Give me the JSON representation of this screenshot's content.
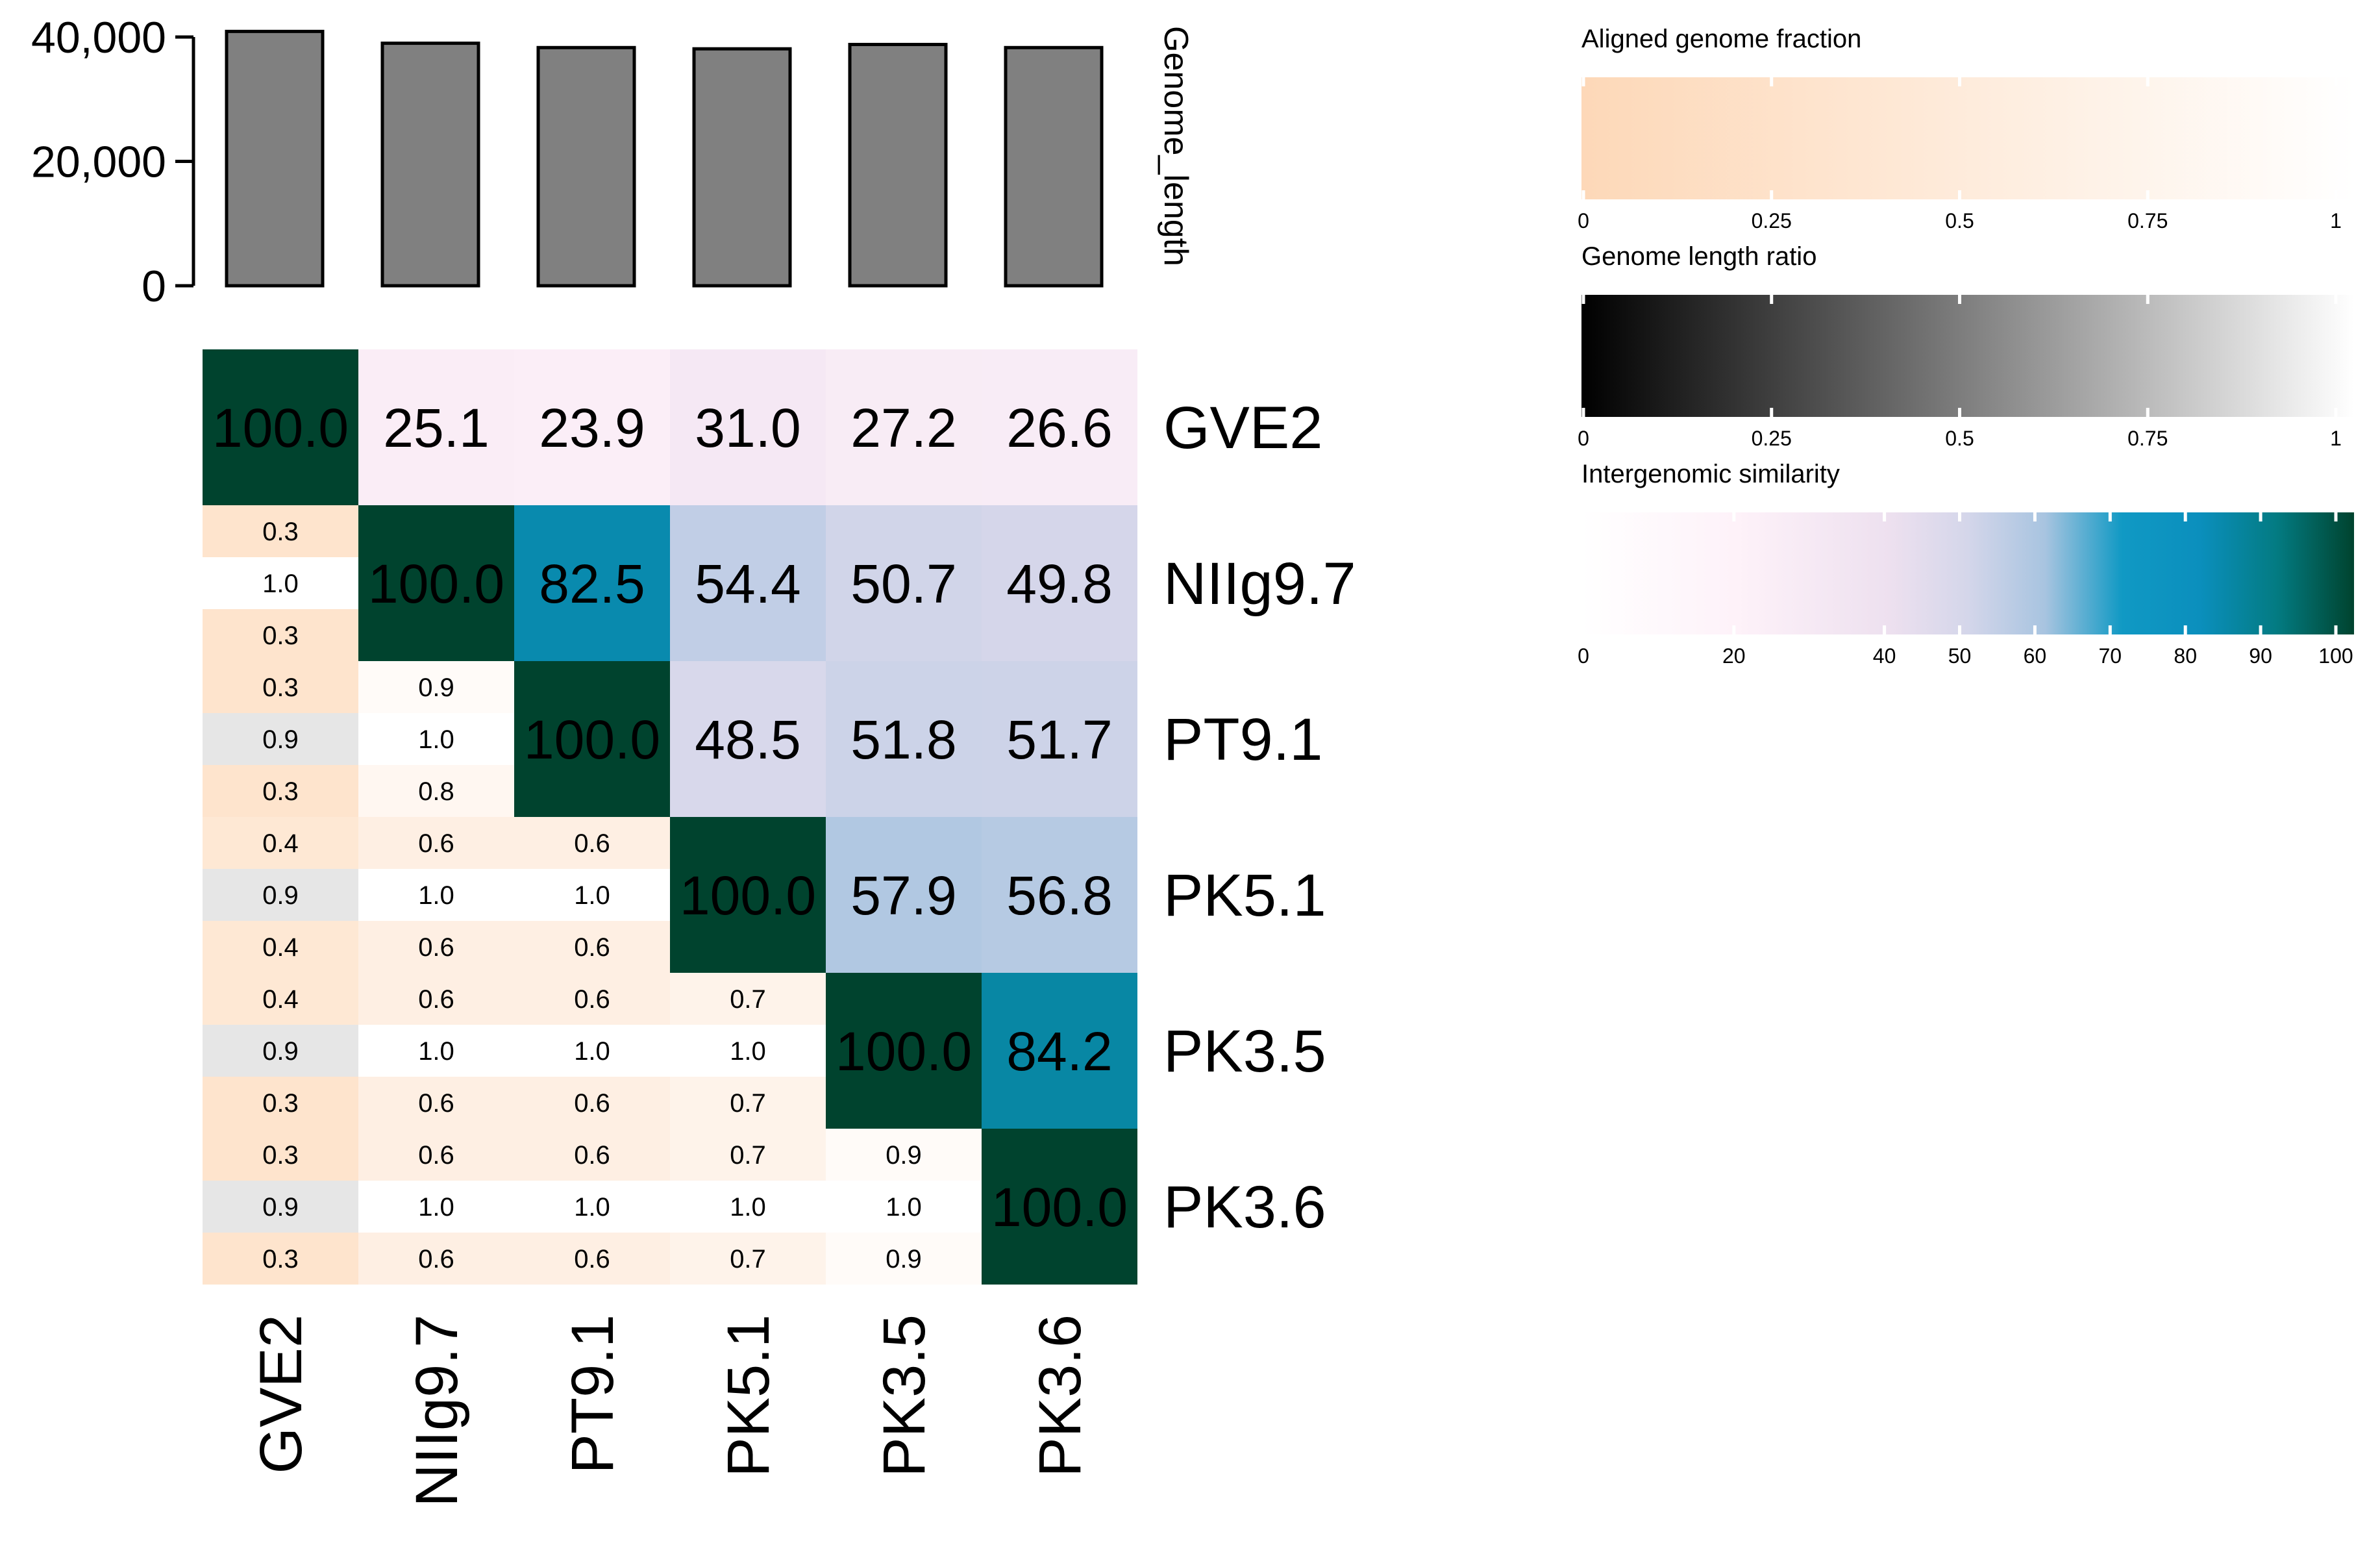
{
  "chart_data": [
    {
      "type": "bar",
      "ylabel": "Genome_length",
      "ylim": [
        0,
        40000
      ],
      "yticks": [
        "0",
        "20,000",
        "40,000"
      ],
      "categories": [
        "GVE2",
        "NIIg9.7",
        "PT9.1",
        "PK5.1",
        "PK3.5",
        "PK3.6"
      ],
      "values": [
        40900,
        39000,
        38300,
        38100,
        38800,
        38300
      ],
      "bar_color": "#808080"
    },
    {
      "type": "heatmap",
      "genomes": [
        "GVE2",
        "NIIg9.7",
        "PT9.1",
        "PK5.1",
        "PK3.5",
        "PK3.6"
      ],
      "similarity": [
        [
          "100.0",
          "25.1",
          "23.9",
          "31.0",
          "27.2",
          "26.6"
        ],
        [
          "",
          "100.0",
          "82.5",
          "54.4",
          "50.7",
          "49.8"
        ],
        [
          "",
          "",
          "100.0",
          "48.5",
          "51.8",
          "51.7"
        ],
        [
          "",
          "",
          "",
          "100.0",
          "57.9",
          "56.8"
        ],
        [
          "",
          "",
          "",
          "",
          "100.0",
          "84.2"
        ],
        [
          "",
          "",
          "",
          "",
          "",
          "100.0"
        ]
      ],
      "lower_triangle": [
        {
          "row": 1,
          "col": 0,
          "values": [
            "0.3",
            "1.0",
            "0.3"
          ]
        },
        {
          "row": 2,
          "col": 0,
          "values": [
            "0.3",
            "0.9",
            "0.3"
          ]
        },
        {
          "row": 2,
          "col": 1,
          "values": [
            "0.9",
            "1.0",
            "0.8"
          ]
        },
        {
          "row": 3,
          "col": 0,
          "values": [
            "0.4",
            "0.9",
            "0.4"
          ]
        },
        {
          "row": 3,
          "col": 1,
          "values": [
            "0.6",
            "1.0",
            "0.6"
          ]
        },
        {
          "row": 3,
          "col": 2,
          "values": [
            "0.6",
            "1.0",
            "0.6"
          ]
        },
        {
          "row": 4,
          "col": 0,
          "values": [
            "0.4",
            "0.9",
            "0.3"
          ]
        },
        {
          "row": 4,
          "col": 1,
          "values": [
            "0.6",
            "1.0",
            "0.6"
          ]
        },
        {
          "row": 4,
          "col": 2,
          "values": [
            "0.6",
            "1.0",
            "0.6"
          ]
        },
        {
          "row": 4,
          "col": 3,
          "values": [
            "0.7",
            "1.0",
            "0.7"
          ]
        },
        {
          "row": 5,
          "col": 0,
          "values": [
            "0.3",
            "0.9",
            "0.3"
          ]
        },
        {
          "row": 5,
          "col": 1,
          "values": [
            "0.6",
            "1.0",
            "0.6"
          ]
        },
        {
          "row": 5,
          "col": 2,
          "values": [
            "0.6",
            "1.0",
            "0.6"
          ]
        },
        {
          "row": 5,
          "col": 3,
          "values": [
            "0.7",
            "1.0",
            "0.7"
          ]
        },
        {
          "row": 5,
          "col": 4,
          "values": [
            "0.9",
            "1.0",
            "0.9"
          ]
        }
      ]
    },
    {
      "type": "legend",
      "title": "Aligned genome fraction",
      "colors": [
        "#fdd8b8",
        "#ffffff"
      ],
      "domain": [
        0,
        1
      ],
      "ticks": [
        "0",
        "0.25",
        "0.5",
        "0.75",
        "1"
      ],
      "tick_values": [
        0,
        0.25,
        0.5,
        0.75,
        1
      ]
    },
    {
      "type": "legend",
      "title": "Genome length ratio",
      "colors": [
        "#000000",
        "#ffffff"
      ],
      "domain": [
        0,
        1
      ],
      "ticks": [
        "0",
        "0.25",
        "0.5",
        "0.75",
        "1"
      ],
      "tick_values": [
        0,
        0.25,
        0.5,
        0.75,
        1
      ]
    },
    {
      "type": "legend",
      "title": "Intergenomic similarity",
      "domain": [
        0,
        100
      ],
      "ticks": [
        "0",
        "20",
        "40",
        "50",
        "60",
        "70",
        "80",
        "90",
        "100"
      ],
      "tick_values": [
        0,
        20,
        40,
        50,
        60,
        70,
        80,
        90,
        100
      ],
      "color_stops": [
        [
          0,
          "#ffffff"
        ],
        [
          20,
          "#fef2f9"
        ],
        [
          40,
          "#ede0ef"
        ],
        [
          50,
          "#d4d6ea"
        ],
        [
          60,
          "#a8c4e0"
        ],
        [
          70,
          "#1099c4"
        ],
        [
          80,
          "#0b8fbd"
        ],
        [
          90,
          "#037b82"
        ],
        [
          100,
          "#00432e"
        ]
      ]
    }
  ]
}
